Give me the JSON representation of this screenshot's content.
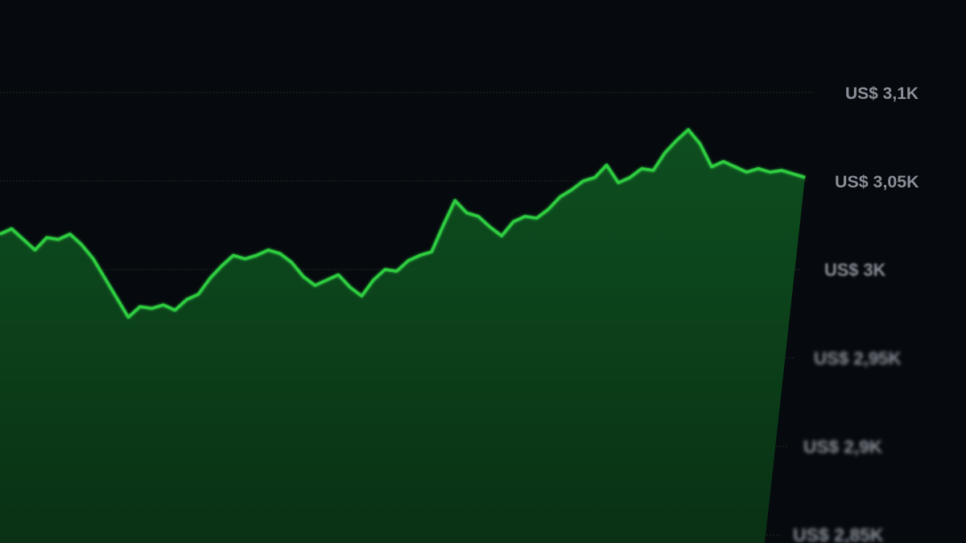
{
  "chart_data": {
    "type": "area",
    "title": "",
    "xlabel": "",
    "ylabel": "",
    "ylim": [
      2850,
      3100
    ],
    "y_tick_labels": [
      "US$ 3,1K",
      "US$ 3,05K",
      "US$ 3K",
      "US$ 2,95K",
      "US$ 2,9K",
      "US$ 2,85K"
    ],
    "y_ticks": [
      3100,
      3050,
      3000,
      2950,
      2900,
      2850
    ],
    "grid": true,
    "line_color": "#2ecc40",
    "fill_color": "#0d4a1c",
    "values": [
      3020,
      3023,
      3017,
      3011,
      3018,
      3017,
      3020,
      3014,
      3006,
      2995,
      2984,
      2973,
      2979,
      2978,
      2980,
      2977,
      2983,
      2986,
      2995,
      3002,
      3008,
      3006,
      3008,
      3011,
      3009,
      3004,
      2996,
      2991,
      2994,
      2997,
      2990,
      2985,
      2994,
      3000,
      2999,
      3005,
      3008,
      3010,
      3025,
      3039,
      3032,
      3030,
      3024,
      3019,
      3027,
      3030,
      3029,
      3034,
      3041,
      3045,
      3050,
      3052,
      3059,
      3049,
      3052,
      3057,
      3056,
      3066,
      3073,
      3079,
      3071,
      3058,
      3061,
      3058,
      3055,
      3057,
      3055,
      3056,
      3054,
      3052
    ]
  }
}
